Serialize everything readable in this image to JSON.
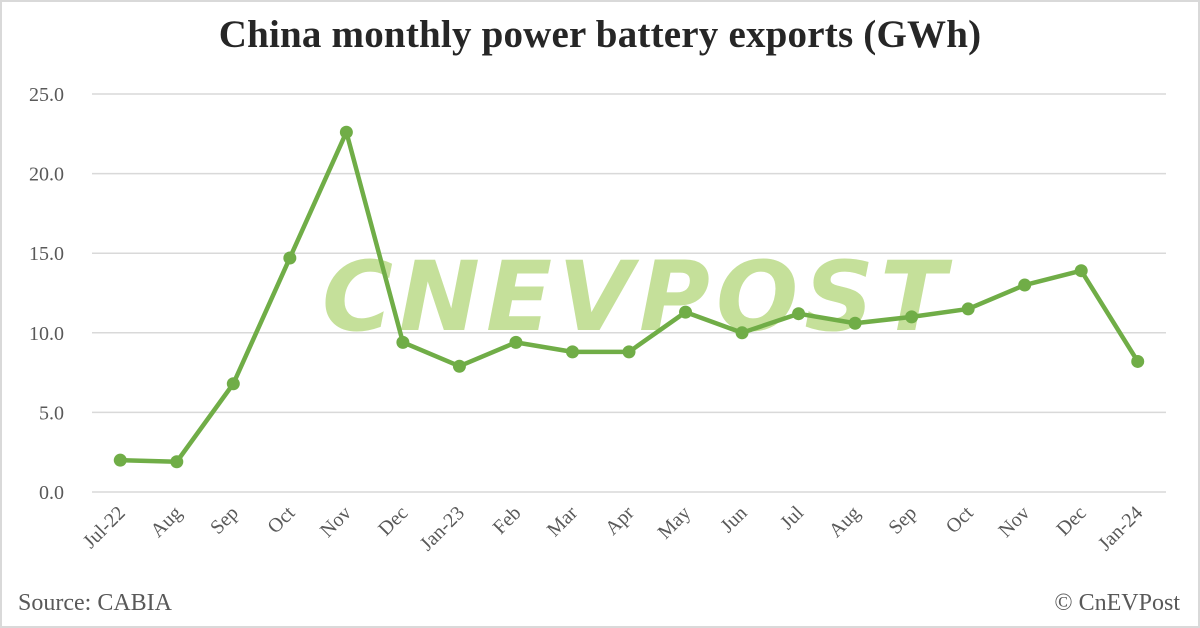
{
  "title": "China monthly power battery exports (GWh)",
  "footer": {
    "source": "Source: CABIA",
    "copyright": "© CnEVPost"
  },
  "watermark": "CNEVPOST",
  "colors": {
    "line": "#70ad47",
    "grid": "#d9d9d9",
    "watermark": "#c5e09a",
    "text": "#595959",
    "title": "#262626"
  },
  "chart_data": {
    "type": "line",
    "title": "China monthly power battery exports (GWh)",
    "xlabel": "",
    "ylabel": "",
    "ylim": [
      0,
      25
    ],
    "yticks": [
      "0.0",
      "5.0",
      "10.0",
      "15.0",
      "20.0",
      "25.0"
    ],
    "grid": true,
    "legend": null,
    "categories": [
      "Jul-22",
      "Aug",
      "Sep",
      "Oct",
      "Nov",
      "Dec",
      "Jan-23",
      "Feb",
      "Mar",
      "Apr",
      "May",
      "Jun",
      "Jul",
      "Aug",
      "Sep",
      "Oct",
      "Nov",
      "Dec",
      "Jan-24"
    ],
    "series": [
      {
        "name": "Power battery exports (GWh)",
        "values": [
          2.0,
          1.9,
          6.8,
          14.7,
          22.6,
          9.4,
          7.9,
          9.4,
          8.8,
          8.8,
          11.3,
          10.0,
          11.2,
          10.6,
          11.0,
          11.5,
          13.0,
          13.9,
          8.2
        ]
      }
    ],
    "source": "CABIA"
  }
}
